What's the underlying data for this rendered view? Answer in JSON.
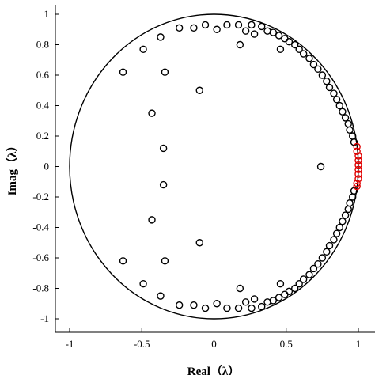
{
  "chart_data": {
    "type": "scatter",
    "xlabel": "Real（λ）",
    "ylabel": "Imag（λ）",
    "xlim": [
      -1.1,
      1.1
    ],
    "ylim": [
      -1.07,
      1.05
    ],
    "xticks": [
      -1,
      -0.5,
      0,
      0.5,
      1
    ],
    "xtick_labels": [
      "-1",
      "-0.5",
      "0",
      "0.5",
      "1"
    ],
    "yticks": [
      1,
      0.8,
      0.6,
      0.4,
      0.2,
      0,
      -0.2,
      -0.4,
      -0.6,
      -0.8,
      -1
    ],
    "ytick_labels": [
      "1",
      "0.8",
      "0.6",
      "0.4",
      "0.2",
      "0",
      "-0.2",
      "-0.4",
      "-0.6",
      "-0.8",
      "-1"
    ],
    "grid": false,
    "reference_curve": {
      "shape": "unit-circle",
      "center": [
        0,
        0
      ],
      "radius": 1,
      "color": "#000000"
    },
    "series": [
      {
        "color": "#000000",
        "marker": "open-circle",
        "points": [
          [
            0.74,
            0.0
          ],
          [
            -0.1,
            0.5
          ],
          [
            -0.1,
            -0.5
          ],
          [
            -0.34,
            0.62
          ],
          [
            -0.34,
            -0.62
          ],
          [
            -0.35,
            0.12
          ],
          [
            -0.35,
            -0.12
          ],
          [
            -0.43,
            0.35
          ],
          [
            -0.43,
            -0.35
          ],
          [
            -0.63,
            0.62
          ],
          [
            -0.63,
            -0.62
          ],
          [
            -0.49,
            0.77
          ],
          [
            -0.49,
            -0.77
          ],
          [
            -0.37,
            0.85
          ],
          [
            -0.37,
            -0.85
          ],
          [
            -0.24,
            0.91
          ],
          [
            -0.24,
            -0.91
          ],
          [
            -0.14,
            0.91
          ],
          [
            -0.14,
            -0.91
          ],
          [
            -0.06,
            0.93
          ],
          [
            -0.06,
            -0.93
          ],
          [
            0.02,
            0.9
          ],
          [
            0.02,
            -0.9
          ],
          [
            0.09,
            0.93
          ],
          [
            0.09,
            -0.93
          ],
          [
            0.17,
            0.93
          ],
          [
            0.17,
            -0.93
          ],
          [
            0.18,
            0.8
          ],
          [
            0.18,
            -0.8
          ],
          [
            0.22,
            0.89
          ],
          [
            0.22,
            -0.89
          ],
          [
            0.26,
            0.93
          ],
          [
            0.26,
            -0.93
          ],
          [
            0.28,
            0.87
          ],
          [
            0.28,
            -0.87
          ],
          [
            0.33,
            0.92
          ],
          [
            0.33,
            -0.92
          ],
          [
            0.37,
            0.89
          ],
          [
            0.37,
            -0.89
          ],
          [
            0.41,
            0.88
          ],
          [
            0.41,
            -0.88
          ],
          [
            0.45,
            0.86
          ],
          [
            0.45,
            -0.86
          ],
          [
            0.46,
            0.77
          ],
          [
            0.46,
            -0.77
          ],
          [
            0.49,
            0.84
          ],
          [
            0.49,
            -0.84
          ],
          [
            0.52,
            0.82
          ],
          [
            0.52,
            -0.82
          ],
          [
            0.56,
            0.8
          ],
          [
            0.56,
            -0.8
          ],
          [
            0.59,
            0.77
          ],
          [
            0.59,
            -0.77
          ],
          [
            0.62,
            0.74
          ],
          [
            0.62,
            -0.74
          ],
          [
            0.66,
            0.71
          ],
          [
            0.66,
            -0.71
          ],
          [
            0.69,
            0.67
          ],
          [
            0.69,
            -0.67
          ],
          [
            0.72,
            0.64
          ],
          [
            0.72,
            -0.64
          ],
          [
            0.75,
            0.6
          ],
          [
            0.75,
            -0.6
          ],
          [
            0.78,
            0.56
          ],
          [
            0.78,
            -0.56
          ],
          [
            0.8,
            0.52
          ],
          [
            0.8,
            -0.52
          ],
          [
            0.83,
            0.48
          ],
          [
            0.83,
            -0.48
          ],
          [
            0.85,
            0.44
          ],
          [
            0.85,
            -0.44
          ],
          [
            0.87,
            0.4
          ],
          [
            0.87,
            -0.4
          ],
          [
            0.89,
            0.36
          ],
          [
            0.89,
            -0.36
          ],
          [
            0.91,
            0.32
          ],
          [
            0.91,
            -0.32
          ],
          [
            0.93,
            0.28
          ],
          [
            0.93,
            -0.28
          ],
          [
            0.94,
            0.24
          ],
          [
            0.94,
            -0.24
          ],
          [
            0.96,
            0.2
          ],
          [
            0.96,
            -0.2
          ],
          [
            0.97,
            0.16
          ],
          [
            0.97,
            -0.16
          ]
        ]
      },
      {
        "color": "#e00000",
        "marker": "open-circle",
        "points": [
          [
            0.99,
            0.13
          ],
          [
            0.99,
            0.1
          ],
          [
            1.0,
            0.07
          ],
          [
            1.0,
            0.04
          ],
          [
            1.0,
            0.01
          ],
          [
            1.0,
            -0.02
          ],
          [
            1.0,
            -0.05
          ],
          [
            1.0,
            -0.08
          ],
          [
            0.99,
            -0.11
          ],
          [
            0.99,
            -0.13
          ]
        ]
      }
    ]
  }
}
